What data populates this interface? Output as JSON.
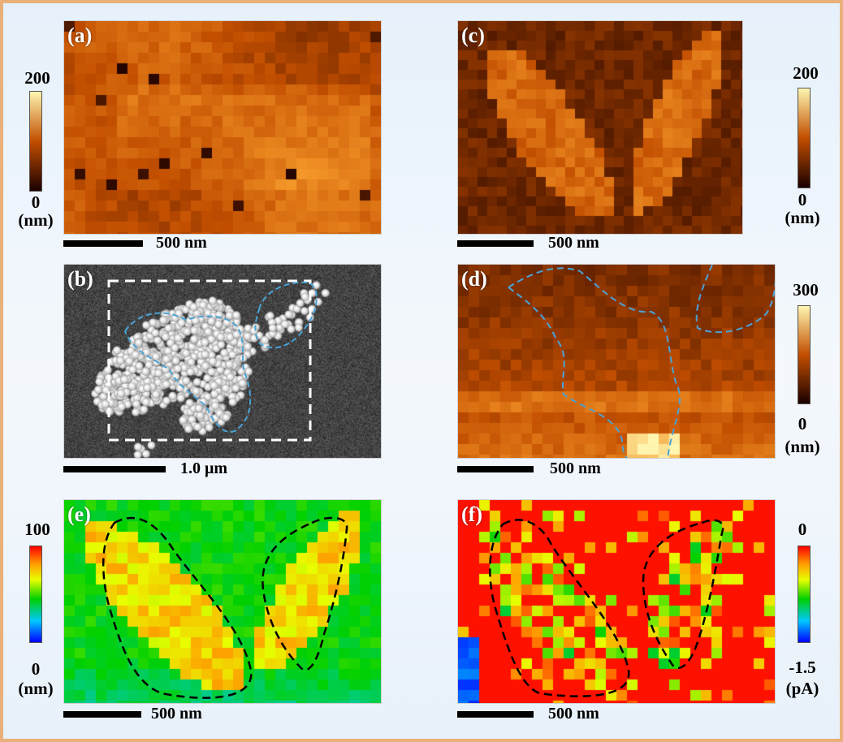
{
  "panels": {
    "a": {
      "label": "(a)",
      "scale": "500 nm",
      "cmax": "200",
      "cmin": "0",
      "unit": "(nm)"
    },
    "b": {
      "label": "(b)",
      "scale": "1.0 μm"
    },
    "c": {
      "label": "(c)",
      "scale": "500 nm",
      "cmax": "200",
      "cmin": "0",
      "unit": "(nm)"
    },
    "d": {
      "label": "(d)",
      "scale": "500 nm",
      "cmax": "300",
      "cmin": "0",
      "unit": "(nm)"
    },
    "e": {
      "label": "(e)",
      "scale": "500 nm",
      "cmax": "100",
      "cmin": "0",
      "unit": "(nm)"
    },
    "f": {
      "label": "(f)",
      "scale": "500 nm",
      "cmax": "0",
      "cmin": "-1.5",
      "unit": "(pA)"
    }
  },
  "colors": {
    "frame_border": "#e9b07a",
    "heat_low": "#1a0000",
    "heat_mid": "#c24e00",
    "heat_high": "#fff6b0",
    "outline_blue": "#4aa3d6",
    "outline_black": "#000000"
  }
}
